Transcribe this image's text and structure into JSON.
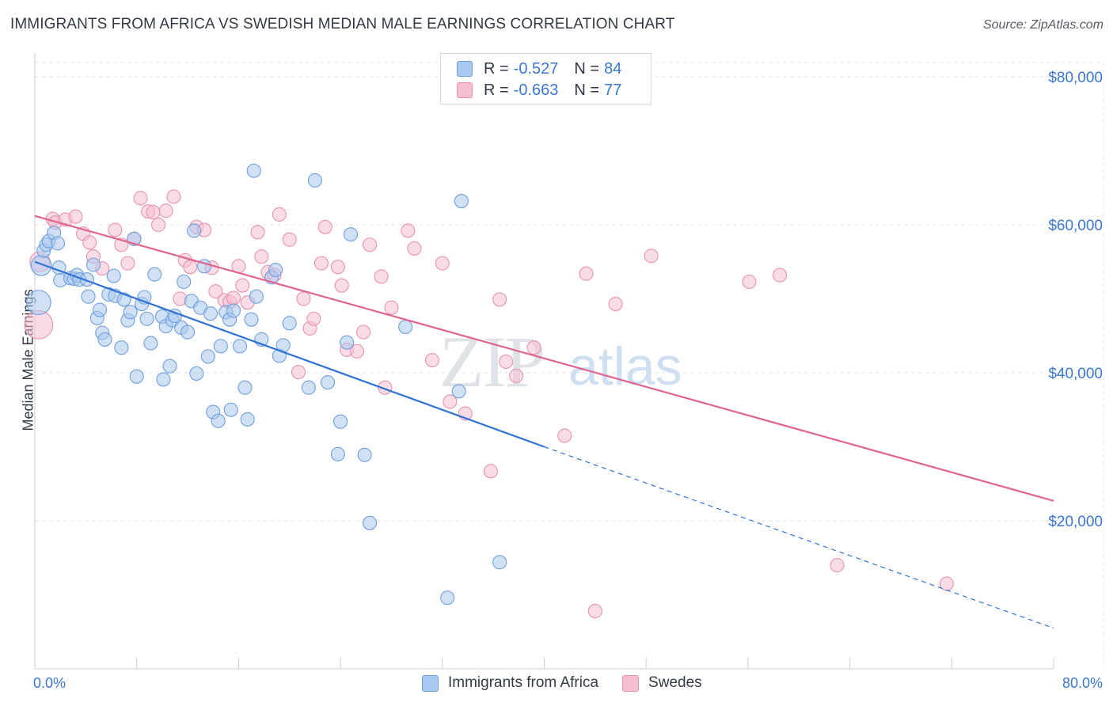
{
  "header": {
    "title": "IMMIGRANTS FROM AFRICA VS SWEDISH MEDIAN MALE EARNINGS CORRELATION CHART",
    "source": "Source: ZipAtlas.com"
  },
  "legend": {
    "rows": [
      {
        "r_label": "R =",
        "r_value": "-0.527",
        "n_label": "N =",
        "n_value": "84"
      },
      {
        "r_label": "R =",
        "r_value": "-0.663",
        "n_label": "N =",
        "n_value": "77"
      }
    ],
    "bottom": [
      "Immigrants from Africa",
      "Swedes"
    ]
  },
  "watermark": {
    "zip": "ZIP",
    "atlas": "atlas"
  },
  "colors": {
    "blue_fill": "#a9c8ef",
    "blue_stroke": "#6f9fdc",
    "blue_line": "#2f72d4",
    "pink_fill": "#f6bfd1",
    "pink_stroke": "#e892b0",
    "pink_line": "#e0648f",
    "tick_label": "#3a78d0",
    "grid": "#e3e6ea"
  },
  "chart_data": {
    "type": "scatter",
    "title": "IMMIGRANTS FROM AFRICA VS SWEDISH MEDIAN MALE EARNINGS CORRELATION CHART",
    "xlabel": "",
    "ylabel": "Median Male Earnings",
    "xlim": [
      0,
      80
    ],
    "ylim": [
      0,
      82000
    ],
    "x_tick_labels": [
      "0.0%",
      "80.0%"
    ],
    "y_ticks": [
      20000,
      40000,
      60000,
      80000
    ],
    "y_tick_labels": [
      "$20,000",
      "$40,000",
      "$60,000",
      "$80,000"
    ],
    "grid": true,
    "legend_position": "top-center",
    "series": [
      {
        "name": "Immigrants from Africa",
        "r": -0.527,
        "n": 84,
        "trend": {
          "x0": 0,
          "y0": 55000,
          "x1": 40,
          "y1": 30000,
          "dash_x1": 80,
          "dash_y1": 5500
        },
        "points": [
          [
            0.3,
            49500,
            1.8
          ],
          [
            0.5,
            54500,
            1.5
          ],
          [
            0.7,
            56500,
            1
          ],
          [
            0.9,
            57300,
            1
          ],
          [
            1.1,
            57800,
            1
          ],
          [
            1.5,
            58900,
            1
          ],
          [
            1.8,
            57500,
            1
          ],
          [
            1.9,
            54200,
            1
          ],
          [
            2.0,
            52500,
            1
          ],
          [
            2.8,
            52800,
            1
          ],
          [
            3.1,
            52700,
            1
          ],
          [
            3.3,
            53200,
            1
          ],
          [
            3.5,
            52600,
            1
          ],
          [
            4.1,
            52600,
            1
          ],
          [
            4.2,
            50300,
            1
          ],
          [
            4.6,
            54600,
            1
          ],
          [
            4.9,
            47400,
            1
          ],
          [
            5.1,
            48500,
            1
          ],
          [
            5.3,
            45400,
            1
          ],
          [
            5.5,
            44500,
            1
          ],
          [
            5.8,
            50600,
            1
          ],
          [
            6.2,
            53100,
            1
          ],
          [
            6.3,
            50400,
            1
          ],
          [
            6.8,
            43400,
            1
          ],
          [
            7.0,
            49900,
            1
          ],
          [
            7.3,
            47100,
            1
          ],
          [
            7.5,
            48200,
            1
          ],
          [
            7.8,
            58100,
            1
          ],
          [
            8.0,
            39500,
            1
          ],
          [
            8.4,
            49300,
            1
          ],
          [
            8.6,
            50200,
            1
          ],
          [
            8.8,
            47300,
            1
          ],
          [
            9.1,
            44000,
            1
          ],
          [
            9.4,
            53300,
            1
          ],
          [
            10.0,
            47600,
            1
          ],
          [
            10.1,
            39100,
            1
          ],
          [
            10.3,
            46300,
            1
          ],
          [
            10.6,
            40900,
            1
          ],
          [
            10.8,
            47100,
            1
          ],
          [
            11.0,
            47700,
            1
          ],
          [
            11.5,
            46100,
            1
          ],
          [
            11.7,
            52300,
            1
          ],
          [
            12.0,
            45500,
            1
          ],
          [
            12.3,
            49700,
            1
          ],
          [
            12.5,
            59200,
            1
          ],
          [
            12.7,
            39900,
            1
          ],
          [
            13.0,
            48800,
            1
          ],
          [
            13.3,
            54400,
            1
          ],
          [
            13.6,
            42200,
            1
          ],
          [
            13.8,
            48000,
            1
          ],
          [
            14.0,
            34700,
            1
          ],
          [
            14.4,
            33500,
            1
          ],
          [
            14.6,
            43600,
            1
          ],
          [
            15.0,
            48200,
            1
          ],
          [
            15.3,
            47200,
            1
          ],
          [
            15.4,
            35000,
            1
          ],
          [
            15.6,
            48400,
            1
          ],
          [
            16.1,
            43600,
            1
          ],
          [
            16.5,
            38000,
            1
          ],
          [
            16.7,
            33700,
            1
          ],
          [
            17.0,
            47200,
            1
          ],
          [
            17.2,
            67300,
            1
          ],
          [
            17.4,
            50300,
            1
          ],
          [
            17.8,
            44500,
            1
          ],
          [
            18.6,
            52900,
            1
          ],
          [
            18.9,
            53900,
            1
          ],
          [
            19.2,
            42300,
            1
          ],
          [
            19.5,
            43700,
            1
          ],
          [
            20.0,
            46700,
            1
          ],
          [
            21.5,
            38000,
            1
          ],
          [
            22.0,
            66000,
            1
          ],
          [
            23.0,
            38700,
            1
          ],
          [
            24.0,
            33400,
            1
          ],
          [
            24.5,
            44100,
            1
          ],
          [
            24.8,
            58700,
            1
          ],
          [
            23.8,
            29000,
            1
          ],
          [
            25.9,
            28900,
            1
          ],
          [
            26.3,
            19700,
            1
          ],
          [
            29.1,
            46200,
            1
          ],
          [
            32.4,
            9600,
            1
          ],
          [
            33.3,
            37500,
            1
          ],
          [
            33.5,
            63200,
            1
          ],
          [
            36.5,
            14400,
            1
          ]
        ]
      },
      {
        "name": "Swedes",
        "r": -0.663,
        "n": 77,
        "trend": {
          "x0": 0,
          "y0": 61200,
          "x1": 80,
          "y1": 22700
        },
        "points": [
          [
            0.3,
            46500,
            2.1
          ],
          [
            0.4,
            55000,
            1.5
          ],
          [
            1.4,
            60800,
            1
          ],
          [
            1.6,
            60300,
            1
          ],
          [
            2.4,
            60700,
            1
          ],
          [
            3.2,
            61100,
            1
          ],
          [
            3.8,
            58800,
            1
          ],
          [
            4.3,
            57600,
            1
          ],
          [
            4.6,
            55700,
            1
          ],
          [
            5.3,
            54100,
            1
          ],
          [
            6.3,
            59300,
            1
          ],
          [
            6.8,
            57300,
            1
          ],
          [
            7.3,
            54800,
            1
          ],
          [
            7.8,
            58100,
            1
          ],
          [
            8.3,
            63600,
            1
          ],
          [
            8.9,
            61800,
            1
          ],
          [
            9.3,
            61700,
            1
          ],
          [
            9.7,
            60000,
            1
          ],
          [
            10.3,
            61900,
            1
          ],
          [
            10.9,
            63800,
            1
          ],
          [
            11.4,
            50000,
            1
          ],
          [
            11.8,
            55200,
            1
          ],
          [
            12.2,
            54300,
            1
          ],
          [
            12.7,
            59700,
            1
          ],
          [
            13.3,
            59300,
            1
          ],
          [
            13.9,
            54200,
            1
          ],
          [
            14.2,
            51000,
            1
          ],
          [
            14.9,
            49800,
            1
          ],
          [
            15.3,
            49600,
            1
          ],
          [
            15.6,
            50100,
            1
          ],
          [
            16.0,
            54400,
            1
          ],
          [
            16.3,
            51800,
            1
          ],
          [
            16.7,
            49500,
            1
          ],
          [
            17.5,
            59000,
            1
          ],
          [
            17.8,
            55700,
            1
          ],
          [
            18.3,
            53600,
            1
          ],
          [
            18.8,
            53200,
            1
          ],
          [
            19.2,
            61400,
            1
          ],
          [
            20.0,
            58000,
            1
          ],
          [
            20.7,
            40100,
            1
          ],
          [
            21.1,
            50000,
            1
          ],
          [
            21.6,
            46000,
            1
          ],
          [
            21.9,
            47300,
            1
          ],
          [
            22.5,
            54800,
            1
          ],
          [
            22.8,
            59700,
            1
          ],
          [
            23.8,
            54300,
            1
          ],
          [
            24.1,
            51800,
            1
          ],
          [
            24.5,
            43100,
            1
          ],
          [
            25.3,
            42900,
            1
          ],
          [
            25.8,
            45500,
            1
          ],
          [
            26.3,
            57300,
            1
          ],
          [
            27.2,
            53000,
            1
          ],
          [
            27.5,
            38000,
            1
          ],
          [
            28.0,
            48800,
            1
          ],
          [
            29.3,
            59200,
            1
          ],
          [
            29.8,
            56800,
            1
          ],
          [
            31.2,
            41700,
            1
          ],
          [
            32.0,
            54800,
            1
          ],
          [
            32.6,
            36100,
            1
          ],
          [
            33.8,
            34500,
            1
          ],
          [
            35.8,
            26700,
            1
          ],
          [
            36.5,
            49900,
            1
          ],
          [
            37.0,
            41500,
            1
          ],
          [
            37.8,
            39600,
            1
          ],
          [
            39.2,
            43400,
            1
          ],
          [
            41.6,
            31500,
            1
          ],
          [
            43.3,
            53400,
            1
          ],
          [
            44.0,
            7800,
            1
          ],
          [
            45.6,
            49300,
            1
          ],
          [
            48.4,
            55800,
            1
          ],
          [
            56.1,
            52300,
            1
          ],
          [
            58.5,
            53200,
            1
          ],
          [
            63.0,
            14000,
            1
          ],
          [
            71.6,
            11500,
            1
          ]
        ]
      }
    ]
  }
}
